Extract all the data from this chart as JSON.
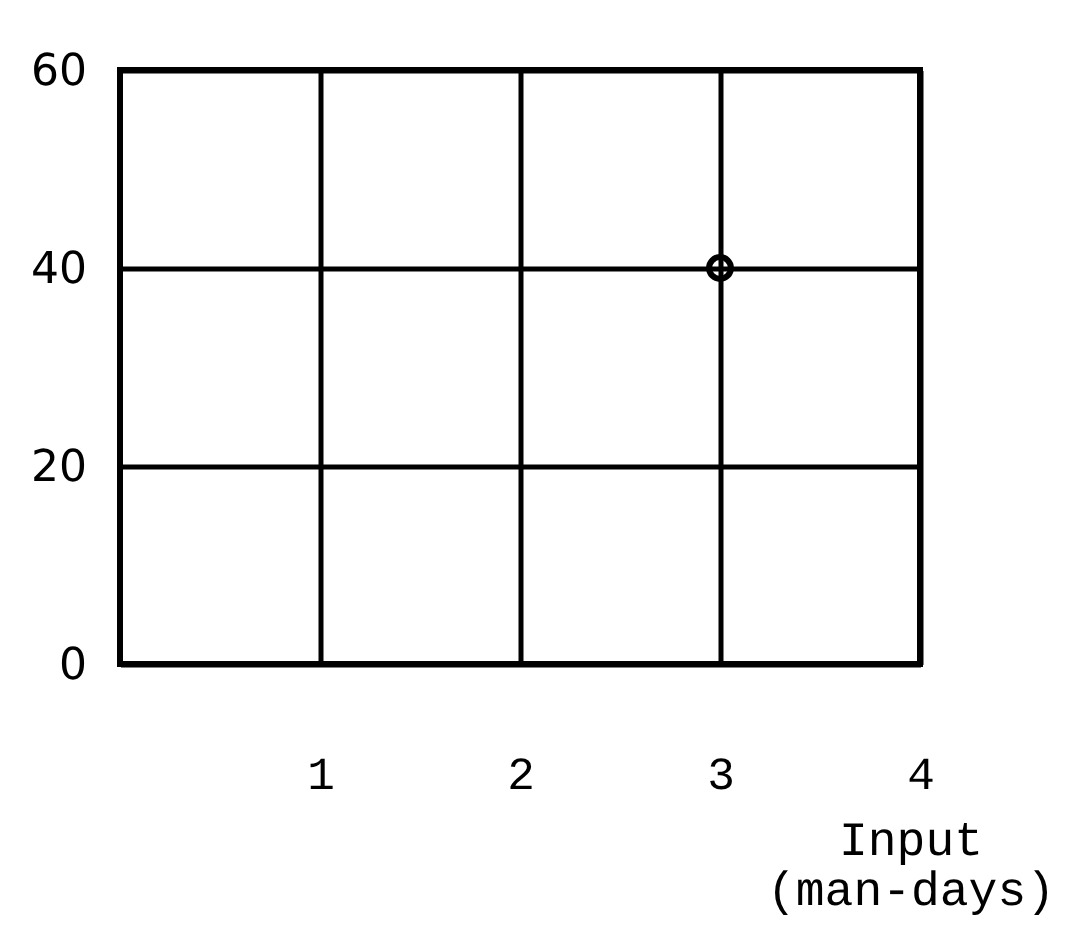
{
  "chart_data": {
    "type": "scatter",
    "x": [
      3
    ],
    "values": [
      40
    ],
    "color": "#000000",
    "marker": "circle",
    "xlabel": "Input\n(man-days)",
    "xlim": [
      0,
      4
    ],
    "xticks": [
      1,
      2,
      3,
      4
    ],
    "ylim": [
      0,
      60
    ],
    "yticks": [
      0,
      20,
      40,
      60
    ],
    "grid": true
  }
}
